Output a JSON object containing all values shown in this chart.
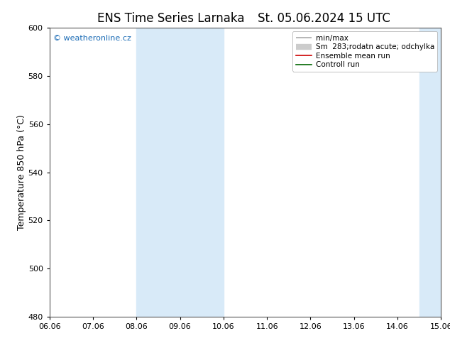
{
  "title_left": "ENS Time Series Larnaka",
  "title_right": "St. 05.06.2024 15 UTC",
  "ylabel": "Temperature 850 hPa (°C)",
  "ylim": [
    480,
    600
  ],
  "yticks": [
    480,
    500,
    520,
    540,
    560,
    580,
    600
  ],
  "xlim": [
    0,
    9
  ],
  "xtick_labels": [
    "06.06",
    "07.06",
    "08.06",
    "09.06",
    "10.06",
    "11.06",
    "12.06",
    "13.06",
    "14.06",
    "15.06"
  ],
  "xtick_positions": [
    0,
    1,
    2,
    3,
    4,
    5,
    6,
    7,
    8,
    9
  ],
  "shade_bands": [
    {
      "x_start": 2,
      "x_end": 4,
      "color": "#ddeeff"
    },
    {
      "x_start": 8.5,
      "x_end": 9,
      "color": "#ddeeff"
    },
    {
      "x_start": 8,
      "x_end": 8.5,
      "color": "#ddeeff"
    }
  ],
  "legend_label_1": "min/max",
  "legend_label_2": "Sm  283;rodatn acute; odchylka",
  "legend_label_3": "Ensemble mean run",
  "legend_label_4": "Controll run",
  "legend_color_1": "#aaaaaa",
  "legend_color_2": "#cccccc",
  "legend_color_3": "#cc0000",
  "legend_color_4": "#006600",
  "watermark": "© weatheronline.cz",
  "watermark_color": "#1a6bb5",
  "bg_color": "#ffffff",
  "spine_color": "#555555",
  "title_fontsize": 12,
  "label_fontsize": 9,
  "tick_fontsize": 8,
  "legend_fontsize": 7.5
}
